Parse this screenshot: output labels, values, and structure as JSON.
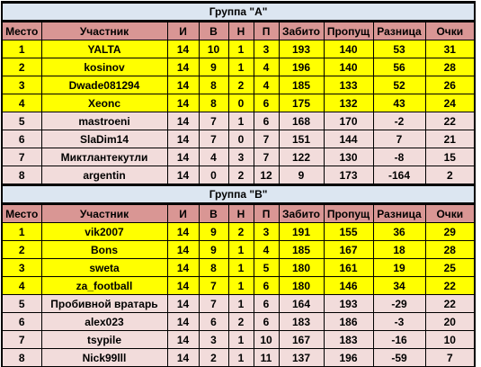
{
  "headers": {
    "place": "Место",
    "participant": "Участник",
    "played": "И",
    "wins": "В",
    "draws": "Н",
    "losses": "П",
    "scored": "Забито",
    "conceded": "Пропущ",
    "diff": "Разница",
    "points": "Очки"
  },
  "groups": [
    {
      "title": "Группа \"А\"",
      "rows": [
        {
          "place": "1",
          "name": "YALTA",
          "played": "14",
          "wins": "10",
          "draws": "1",
          "losses": "3",
          "scored": "193",
          "conceded": "140",
          "diff": "53",
          "points": "31"
        },
        {
          "place": "2",
          "name": "kosinov",
          "played": "14",
          "wins": "9",
          "draws": "1",
          "losses": "4",
          "scored": "196",
          "conceded": "140",
          "diff": "56",
          "points": "28"
        },
        {
          "place": "3",
          "name": "Dwade081294",
          "played": "14",
          "wins": "8",
          "draws": "2",
          "losses": "4",
          "scored": "185",
          "conceded": "133",
          "diff": "52",
          "points": "26"
        },
        {
          "place": "4",
          "name": "Xeonc",
          "played": "14",
          "wins": "8",
          "draws": "0",
          "losses": "6",
          "scored": "175",
          "conceded": "132",
          "diff": "43",
          "points": "24"
        },
        {
          "place": "5",
          "name": "mastroeni",
          "played": "14",
          "wins": "7",
          "draws": "1",
          "losses": "6",
          "scored": "168",
          "conceded": "170",
          "diff": "-2",
          "points": "22"
        },
        {
          "place": "6",
          "name": "SlaDim14",
          "played": "14",
          "wins": "7",
          "draws": "0",
          "losses": "7",
          "scored": "151",
          "conceded": "144",
          "diff": "7",
          "points": "21"
        },
        {
          "place": "7",
          "name": "Миктлантекутли",
          "played": "14",
          "wins": "4",
          "draws": "3",
          "losses": "7",
          "scored": "122",
          "conceded": "130",
          "diff": "-8",
          "points": "15"
        },
        {
          "place": "8",
          "name": "argentin",
          "played": "14",
          "wins": "0",
          "draws": "2",
          "losses": "12",
          "scored": "9",
          "conceded": "173",
          "diff": "-164",
          "points": "2"
        }
      ]
    },
    {
      "title": "Группа \"В\"",
      "rows": [
        {
          "place": "1",
          "name": "vik2007",
          "played": "14",
          "wins": "9",
          "draws": "2",
          "losses": "3",
          "scored": "191",
          "conceded": "155",
          "diff": "36",
          "points": "29"
        },
        {
          "place": "2",
          "name": "Bons",
          "played": "14",
          "wins": "9",
          "draws": "1",
          "losses": "4",
          "scored": "185",
          "conceded": "167",
          "diff": "18",
          "points": "28"
        },
        {
          "place": "3",
          "name": "sweta",
          "played": "14",
          "wins": "8",
          "draws": "1",
          "losses": "5",
          "scored": "180",
          "conceded": "161",
          "diff": "19",
          "points": "25"
        },
        {
          "place": "4",
          "name": "za_football",
          "played": "14",
          "wins": "7",
          "draws": "1",
          "losses": "6",
          "scored": "180",
          "conceded": "146",
          "diff": "34",
          "points": "22"
        },
        {
          "place": "5",
          "name": "Пробивной вратарь",
          "played": "14",
          "wins": "7",
          "draws": "1",
          "losses": "6",
          "scored": "164",
          "conceded": "193",
          "diff": "-29",
          "points": "22"
        },
        {
          "place": "6",
          "name": "alex023",
          "played": "14",
          "wins": "6",
          "draws": "2",
          "losses": "6",
          "scored": "183",
          "conceded": "186",
          "diff": "-3",
          "points": "20"
        },
        {
          "place": "7",
          "name": "tsypile",
          "played": "14",
          "wins": "3",
          "draws": "1",
          "losses": "10",
          "scored": "167",
          "conceded": "183",
          "diff": "-16",
          "points": "10"
        },
        {
          "place": "8",
          "name": "Nick99lll",
          "played": "14",
          "wins": "2",
          "draws": "1",
          "losses": "11",
          "scored": "137",
          "conceded": "196",
          "diff": "-59",
          "points": "7"
        }
      ]
    }
  ],
  "colors": {
    "title_bg": "#dce6f1",
    "header_bg": "#d99694",
    "top_rows_bg": "#ffff00",
    "bottom_rows_bg": "#f2dcdb"
  }
}
